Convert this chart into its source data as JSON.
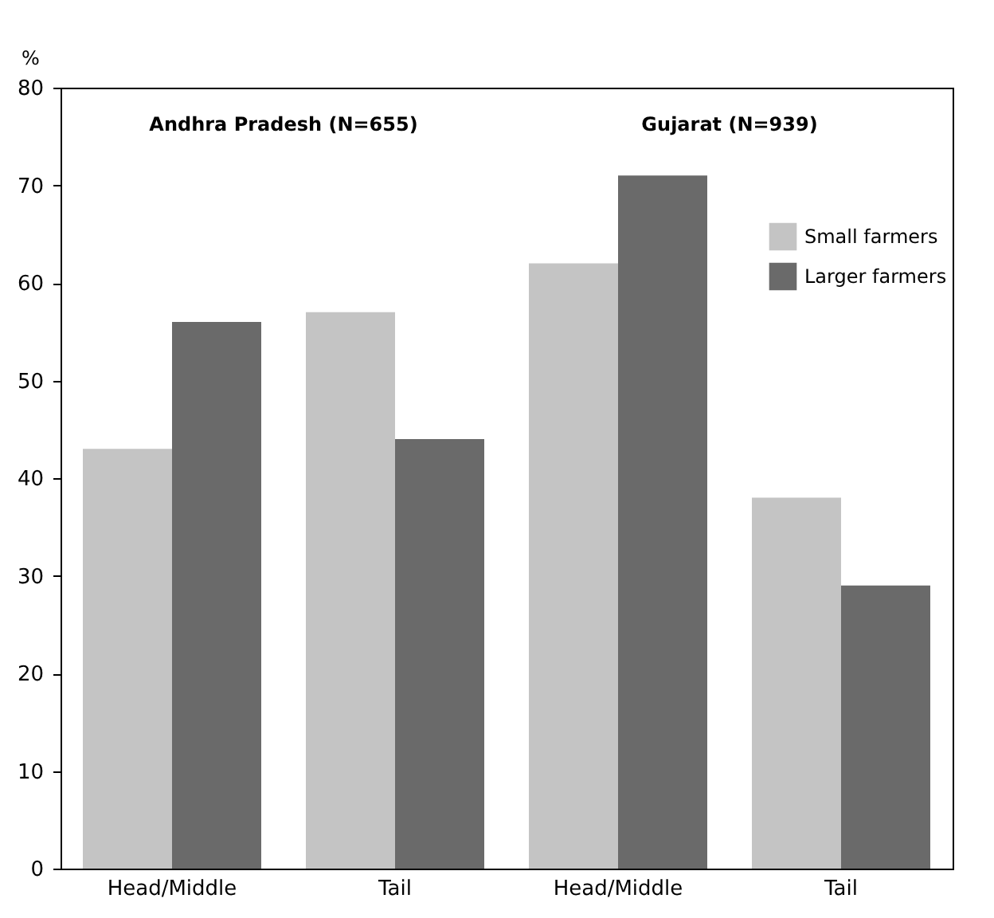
{
  "chart_data": {
    "type": "bar",
    "ylabel": "%",
    "categories": [
      "Head/Middle",
      "Tail",
      "Head/Middle",
      "Tail"
    ],
    "series": [
      {
        "name": "Small farmers",
        "color": "#c4c4c4",
        "values": [
          43,
          57,
          62,
          38
        ]
      },
      {
        "name": "Larger farmers",
        "color": "#6a6a6a",
        "values": [
          56,
          44,
          71,
          29
        ]
      }
    ],
    "ylim": [
      0,
      80
    ],
    "yticks": [
      0,
      10,
      20,
      30,
      40,
      50,
      60,
      70,
      80
    ],
    "grid": false,
    "legend": "top right",
    "annotations": [
      "Andhra Pradesh (N=655)",
      "Gujarat (N=939)"
    ]
  }
}
